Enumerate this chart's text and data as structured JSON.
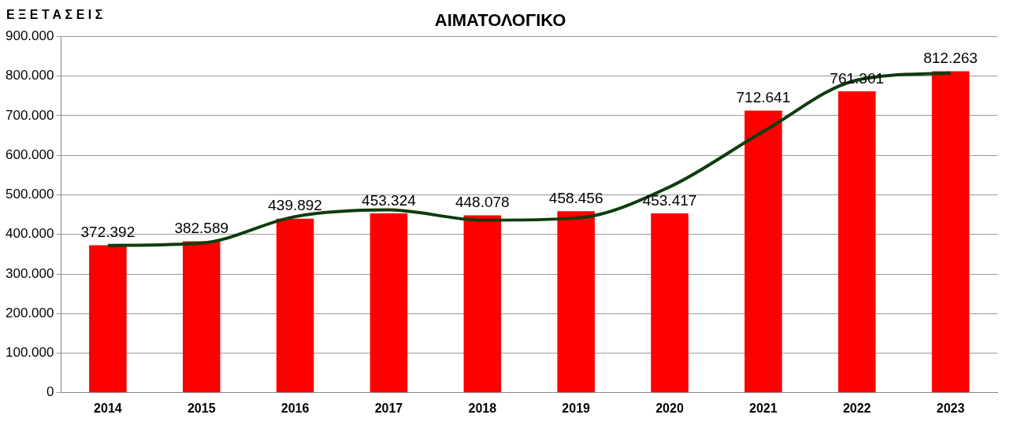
{
  "chart_data": {
    "type": "bar",
    "title": "ΑΙΜΑΤΟΛΟΓΙΚΟ",
    "ylabel": "Ε Ξ Ε Τ Α Σ Ε Ι Σ",
    "categories": [
      "2014",
      "2015",
      "2016",
      "2017",
      "2018",
      "2019",
      "2020",
      "2021",
      "2022",
      "2023"
    ],
    "series": [
      {
        "color": "#ff0000",
        "values": [
          372392,
          382589,
          439892,
          453324,
          448078,
          458456,
          453417,
          712641,
          761301,
          812263
        ],
        "value_labels": [
          "372.392",
          "382.589",
          "439.892",
          "453.324",
          "448.078",
          "458.456",
          "453.417",
          "712.641",
          "761.301",
          "812.263"
        ]
      },
      {
        "type": "line",
        "color": "#0d3d0d",
        "values": [
          372000,
          378000,
          445000,
          462000,
          436000,
          441000,
          520000,
          660000,
          790000,
          808000
        ]
      }
    ],
    "ylim": [
      0,
      900000
    ],
    "yticks": [
      0,
      {
        "value": 100000,
        "label": "100.000"
      },
      {
        "value": 200000,
        "label": "200.000"
      },
      {
        "value": 300000,
        "label": "300.000"
      },
      {
        "value": 400000,
        "label": "400.000"
      },
      {
        "value": 500000,
        "label": "500.000"
      },
      {
        "value": 600000,
        "label": "600.000"
      },
      {
        "value": 700000,
        "label": "700.000"
      },
      {
        "value": 800000,
        "label": "800.000"
      },
      {
        "value": 900000,
        "label": "900.000"
      }
    ],
    "grid": "y",
    "marker": "none"
  }
}
